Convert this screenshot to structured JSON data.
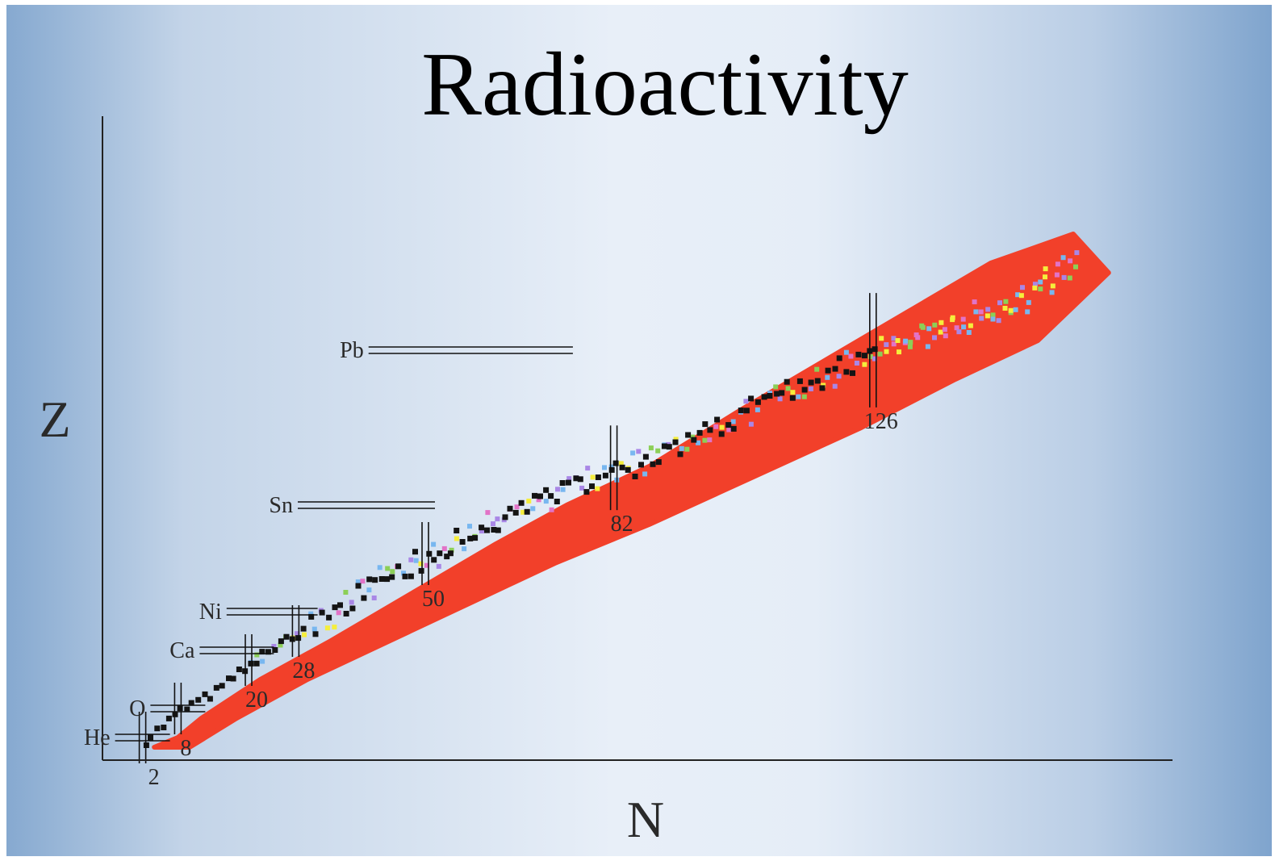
{
  "slide": {
    "title": "Radioactivity"
  },
  "chart_data": {
    "type": "scatter",
    "title": "Radioactivity",
    "xlabel": "N",
    "ylabel": "Z",
    "xlim": [
      0,
      180
    ],
    "ylim": [
      0,
      110
    ],
    "grid": false,
    "colors": {
      "radioactive": "#f2402a",
      "stable": "#141414",
      "long_lived": [
        "#f5ee3c",
        "#e273c7",
        "#8ccf57",
        "#78b7f0",
        "#a987e6"
      ]
    },
    "valley_of_stability": [
      [
        2,
        2
      ],
      [
        8,
        8
      ],
      [
        20,
        20
      ],
      [
        28,
        28
      ],
      [
        50,
        50
      ],
      [
        82,
        82
      ],
      [
        126,
        126
      ]
    ],
    "band_outline": {
      "upper": [
        [
          4,
          0
        ],
        [
          8,
          2
        ],
        [
          12,
          6
        ],
        [
          22,
          14
        ],
        [
          34,
          22
        ],
        [
          48,
          32
        ],
        [
          62,
          42
        ],
        [
          74,
          50
        ],
        [
          88,
          58
        ],
        [
          104,
          70
        ],
        [
          118,
          80
        ],
        [
          132,
          90
        ],
        [
          146,
          100
        ],
        [
          160,
          106
        ]
      ],
      "lower": [
        [
          4,
          0
        ],
        [
          10,
          0
        ],
        [
          18,
          6
        ],
        [
          30,
          14
        ],
        [
          44,
          22
        ],
        [
          58,
          30
        ],
        [
          72,
          38
        ],
        [
          88,
          46
        ],
        [
          106,
          56
        ],
        [
          124,
          66
        ],
        [
          140,
          76
        ],
        [
          154,
          84
        ],
        [
          166,
          98
        ],
        [
          160,
          106
        ]
      ]
    },
    "stable_line": [
      [
        2,
        2
      ],
      [
        8,
        8
      ],
      [
        14,
        12
      ],
      [
        20,
        18
      ],
      [
        28,
        24
      ],
      [
        38,
        32
      ],
      [
        50,
        40
      ],
      [
        64,
        48
      ],
      [
        78,
        56
      ],
      [
        92,
        62
      ],
      [
        108,
        72
      ],
      [
        126,
        82
      ]
    ],
    "magic_numbers": [
      {
        "label": "2",
        "value": 2
      },
      {
        "label": "8",
        "value": 8
      },
      {
        "label": "20",
        "value": 20
      },
      {
        "label": "28",
        "value": 28
      },
      {
        "label": "50",
        "value": 50
      },
      {
        "label": "82",
        "value": 82
      },
      {
        "label": "126",
        "value": 126
      }
    ],
    "elements": [
      {
        "label": "He",
        "z": 2
      },
      {
        "label": "O",
        "z": 8
      },
      {
        "label": "Ca",
        "z": 20
      },
      {
        "label": "Ni",
        "z": 28
      },
      {
        "label": "Sn",
        "z": 50
      },
      {
        "label": "Pb",
        "z": 82
      }
    ]
  }
}
